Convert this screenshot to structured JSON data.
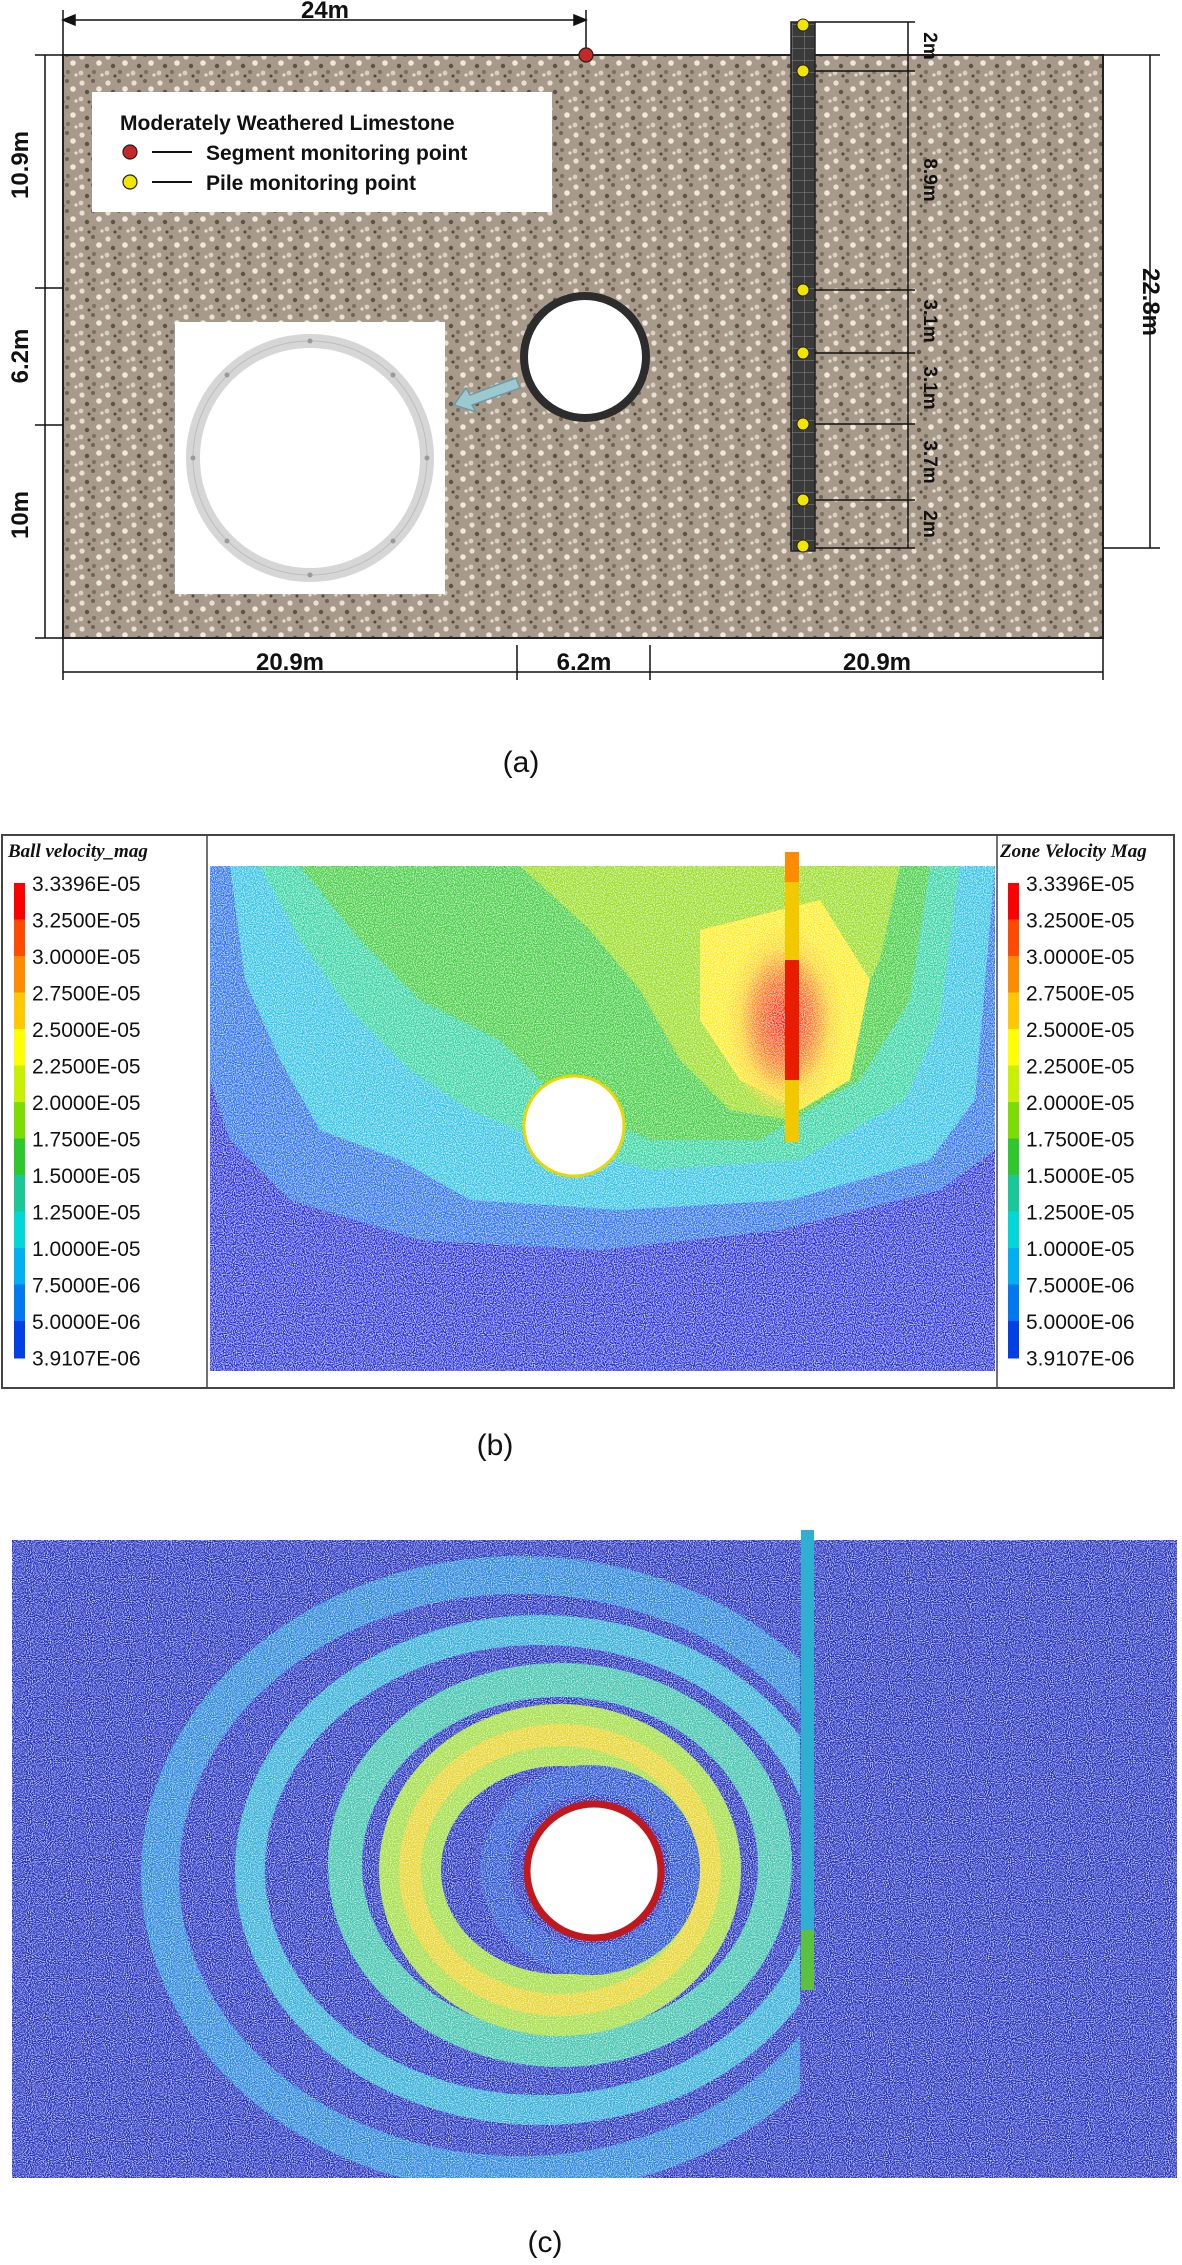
{
  "panel_a": {
    "caption": "(a)",
    "legend": {
      "title": "Moderately Weathered Limestone",
      "items": [
        {
          "label": "Segment monitoring point",
          "color": "#c62828"
        },
        {
          "label": "Pile monitoring point",
          "color": "#f2e600"
        }
      ]
    },
    "dimensions": {
      "top": "24m",
      "left_top": "10.9m",
      "left_mid": "6.2m",
      "left_bottom": "10m",
      "right": "22.8m",
      "bottom_left": "20.9m",
      "bottom_mid": "6.2m",
      "bottom_right": "20.9m",
      "pile_segments": [
        "2m",
        "8.9m",
        "3.1m",
        "3.1m",
        "3.7m",
        "2m"
      ]
    },
    "colors": {
      "soil": "#a89a8a",
      "pile": "#333333",
      "ring": "#d6d6d6"
    }
  },
  "panel_b": {
    "caption": "(b)",
    "left_colorbar": {
      "title": "Ball velocity_mag",
      "values": [
        "3.3396E-05",
        "3.2500E-05",
        "3.0000E-05",
        "2.7500E-05",
        "2.5000E-05",
        "2.2500E-05",
        "2.0000E-05",
        "1.7500E-05",
        "1.5000E-05",
        "1.2500E-05",
        "1.0000E-05",
        "7.5000E-06",
        "5.0000E-06",
        "3.9107E-06"
      ]
    },
    "right_colorbar": {
      "title": "Zone Velocity Mag",
      "values": [
        "3.3396E-05",
        "3.2500E-05",
        "3.0000E-05",
        "2.7500E-05",
        "2.5000E-05",
        "2.2500E-05",
        "2.0000E-05",
        "1.7500E-05",
        "1.5000E-05",
        "1.2500E-05",
        "1.0000E-05",
        "7.5000E-06",
        "5.0000E-06",
        "3.9107E-06"
      ]
    },
    "colormap": [
      "#ff0000",
      "#ff4a00",
      "#ff8c00",
      "#ffc800",
      "#ffff00",
      "#c8f000",
      "#7ddc00",
      "#2ec82e",
      "#19c896",
      "#00d8d8",
      "#00b0f0",
      "#0078f0",
      "#0040e6",
      "#0000e0"
    ]
  },
  "panel_c": {
    "caption": "(c)",
    "colors": {
      "background": "#1a33c8",
      "tunnel_ring": "#c0181c"
    }
  }
}
